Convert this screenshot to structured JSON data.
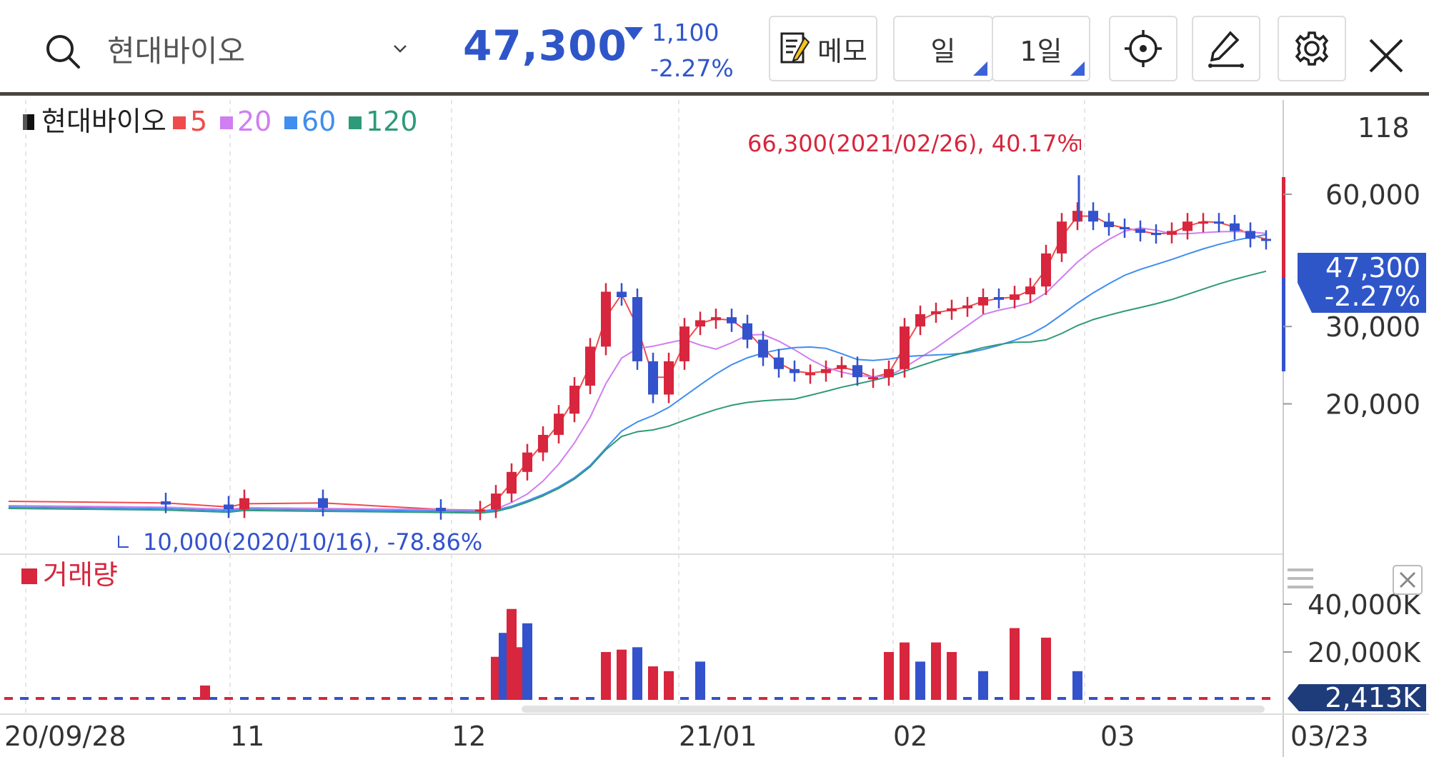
{
  "header": {
    "stock_name": "현대바이오",
    "price": "47,300",
    "change_abs": "1,100",
    "change_pct": "-2.27%",
    "memo_label": "메모",
    "period_label": "일",
    "interval_label": "1일"
  },
  "chart": {
    "legend": {
      "stock": "현대바이오",
      "ma": [
        {
          "label": "5",
          "color": "#f04b4b"
        },
        {
          "label": "20",
          "color": "#d07ef0"
        },
        {
          "label": "60",
          "color": "#3f8ef0"
        },
        {
          "label": "120",
          "color": "#2e9a7a"
        }
      ]
    },
    "max_annotation": "66,300(2021/02/26), 40.17%",
    "min_annotation": "10,000(2020/10/16), -78.86%",
    "top_axis_value": "118",
    "y_ticks": [
      {
        "label": "60,000",
        "value": 60000
      },
      {
        "label": "30,000",
        "value": 30000
      },
      {
        "label": "20,000",
        "value": 20000
      }
    ],
    "current_price_tag": "47,300",
    "current_pct_tag": "-2.27%",
    "volume": {
      "label": "거래량",
      "ticks": [
        {
          "label": "40,000K",
          "value": 40000
        },
        {
          "label": "20,000K",
          "value": 20000
        }
      ],
      "current_tag": "2,413K"
    },
    "x_labels": [
      "20/09/28",
      "11",
      "12",
      "21/01",
      "02",
      "03",
      "03/23"
    ],
    "colors": {
      "up": "#d7263d",
      "down": "#3352cc",
      "accent": "#2f56c9"
    }
  },
  "chart_data": {
    "type": "candlestick",
    "price_path": [
      [
        0,
        12000
      ],
      [
        20,
        11800
      ],
      [
        28,
        11500
      ],
      [
        30,
        12200
      ],
      [
        40,
        11600
      ],
      [
        55,
        11400
      ],
      [
        60,
        11500
      ],
      [
        62,
        12500
      ],
      [
        64,
        14000
      ],
      [
        66,
        15500
      ],
      [
        68,
        17000
      ],
      [
        70,
        19000
      ],
      [
        72,
        22000
      ],
      [
        74,
        27000
      ],
      [
        76,
        36000
      ],
      [
        78,
        35000
      ],
      [
        80,
        25000
      ],
      [
        82,
        21000
      ],
      [
        84,
        25000
      ],
      [
        86,
        30000
      ],
      [
        88,
        31000
      ],
      [
        90,
        31500
      ],
      [
        92,
        30500
      ],
      [
        94,
        28000
      ],
      [
        96,
        25500
      ],
      [
        98,
        24000
      ],
      [
        100,
        23500
      ],
      [
        102,
        23500
      ],
      [
        104,
        24000
      ],
      [
        106,
        24500
      ],
      [
        108,
        23000
      ],
      [
        110,
        23000
      ],
      [
        112,
        24000
      ],
      [
        114,
        30000
      ],
      [
        116,
        32000
      ],
      [
        118,
        32500
      ],
      [
        120,
        33000
      ],
      [
        122,
        33500
      ],
      [
        124,
        35000
      ],
      [
        126,
        34500
      ],
      [
        128,
        35500
      ],
      [
        130,
        37000
      ],
      [
        132,
        44000
      ],
      [
        134,
        52000
      ],
      [
        136,
        55000
      ],
      [
        138,
        52000
      ],
      [
        140,
        50500
      ],
      [
        142,
        50000
      ],
      [
        144,
        49000
      ],
      [
        146,
        48500
      ],
      [
        148,
        49500
      ],
      [
        150,
        52000
      ],
      [
        152,
        52000
      ],
      [
        154,
        51500
      ],
      [
        156,
        49500
      ],
      [
        158,
        47500
      ],
      [
        160,
        47300
      ]
    ],
    "max": {
      "date": "2021/02/26",
      "value": 66300,
      "pct": 40.17
    },
    "min": {
      "date": "2020/10/16",
      "value": 10000,
      "pct": -78.86
    },
    "volume_k": [
      [
        25,
        6000
      ],
      [
        62,
        18000
      ],
      [
        63,
        28000
      ],
      [
        64,
        38000
      ],
      [
        65,
        22000
      ],
      [
        66,
        32000
      ],
      [
        76,
        20000
      ],
      [
        78,
        21000
      ],
      [
        80,
        22000
      ],
      [
        82,
        14000
      ],
      [
        84,
        12000
      ],
      [
        88,
        16000
      ],
      [
        112,
        20000
      ],
      [
        114,
        24000
      ],
      [
        116,
        16000
      ],
      [
        118,
        24000
      ],
      [
        120,
        20000
      ],
      [
        124,
        12000
      ],
      [
        128,
        30000
      ],
      [
        132,
        26000
      ],
      [
        136,
        12000
      ]
    ],
    "last_volume_k": 2413
  }
}
